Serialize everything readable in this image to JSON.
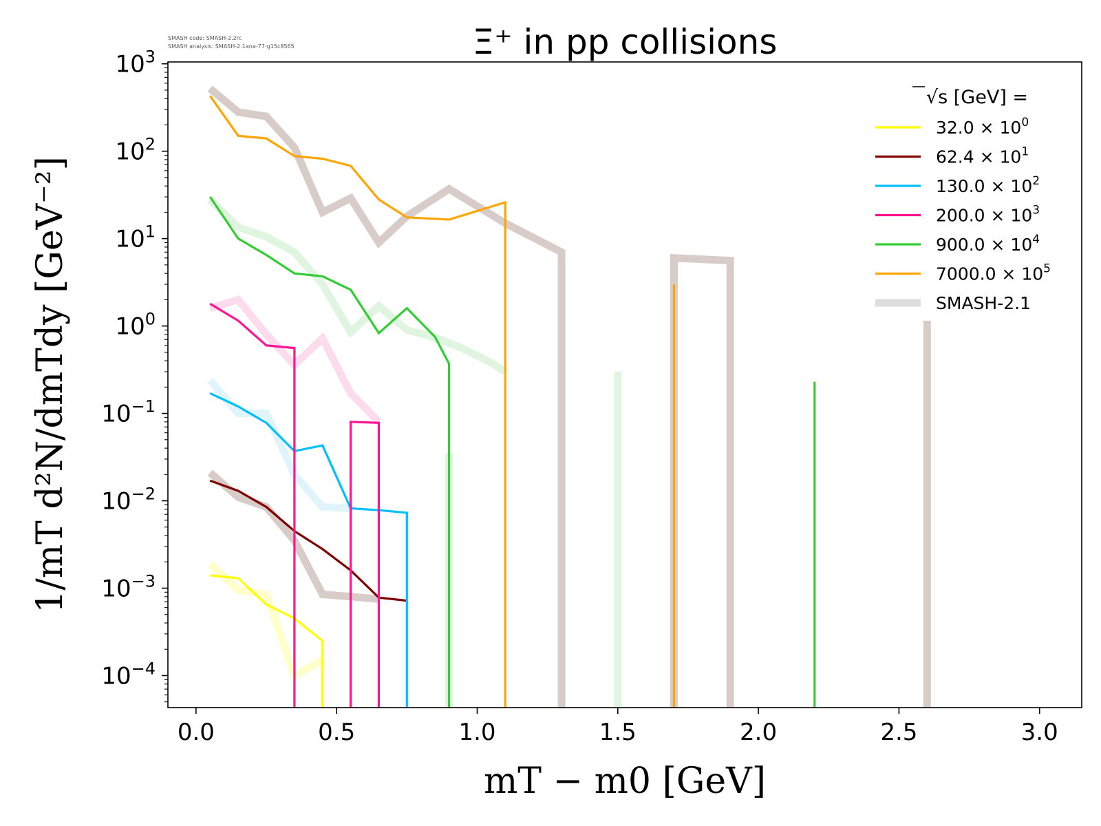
{
  "chart_data": {
    "type": "line",
    "title": "Ξ⁺ in pp collisions",
    "watermark": [
      "SMASH code:      SMASH-2.2rc",
      "SMASH analysis: SMASH-2.1ana-77-g15c8565"
    ],
    "xlabel": "mT − m0  [GeV]",
    "ylabel": "1/mT d²N/dmTdy  [GeV⁻²]",
    "xlim": [
      -0.1,
      3.15
    ],
    "ylog": true,
    "ylim": [
      4.3e-05,
      1050
    ],
    "x_ticks": [
      "0.0",
      "0.5",
      "1.0",
      "1.5",
      "2.0",
      "2.5",
      "3.0"
    ],
    "x_tick_values": [
      0,
      0.5,
      1.0,
      1.5,
      2.0,
      2.5,
      3.0
    ],
    "y_ticks": [
      {
        "base": "10",
        "exp": "−4",
        "value": 0.0001
      },
      {
        "base": "10",
        "exp": "−3",
        "value": 0.001
      },
      {
        "base": "10",
        "exp": "−2",
        "value": 0.01
      },
      {
        "base": "10",
        "exp": "−1",
        "value": 0.1
      },
      {
        "base": "10",
        "exp": "0",
        "value": 1
      },
      {
        "base": "10",
        "exp": "1",
        "value": 10
      },
      {
        "base": "10",
        "exp": "2",
        "value": 100
      },
      {
        "base": "10",
        "exp": "3",
        "value": 1000
      }
    ],
    "legend": {
      "title": "√s  [GeV] =",
      "placement": "top-right",
      "entries": [
        {
          "label": "32.0",
          "factor": "× 10",
          "exp": "0",
          "color": "#ffff00",
          "width": "thin"
        },
        {
          "label": "62.4",
          "factor": "× 10",
          "exp": "1",
          "color": "#800000",
          "width": "thin"
        },
        {
          "label": "130.0",
          "factor": "× 10",
          "exp": "2",
          "color": "#00bfff",
          "width": "thin"
        },
        {
          "label": "200.0",
          "factor": "× 10",
          "exp": "3",
          "color": "#ff1493",
          "width": "thin"
        },
        {
          "label": "900.0",
          "factor": "× 10",
          "exp": "4",
          "color": "#32cd32",
          "width": "thin"
        },
        {
          "label": "7000.0",
          "factor": "× 10",
          "exp": "5",
          "color": "#ffa500",
          "width": "thin"
        },
        {
          "label": "SMASH-2.1",
          "factor": "",
          "exp": "",
          "color": "#dddddd",
          "width": "thick"
        }
      ]
    },
    "series": [
      {
        "name": "32.0 × 10^0",
        "role": "data",
        "color": "#ffff00",
        "x": [
          0.05,
          0.15,
          0.25,
          0.35,
          0.45,
          0.45
        ],
        "y": [
          0.0014,
          0.0013,
          0.00065,
          0.00045,
          0.00025,
          3e-05
        ]
      },
      {
        "name": "62.4 × 10^1",
        "role": "data",
        "color": "#800000",
        "x": [
          0.05,
          0.15,
          0.25,
          0.35,
          0.45,
          0.55,
          0.65,
          0.75
        ],
        "y": [
          0.017,
          0.013,
          0.0085,
          0.0045,
          0.0028,
          0.0016,
          0.00078,
          0.00072
        ]
      },
      {
        "name": "130.0 × 10^2",
        "role": "data",
        "color": "#00bfff",
        "x": [
          0.05,
          0.15,
          0.25,
          0.35,
          0.45,
          0.55,
          0.65,
          0.75,
          0.75
        ],
        "y": [
          0.17,
          0.12,
          0.078,
          0.037,
          0.043,
          0.0082,
          0.0078,
          0.0073,
          3e-05
        ]
      },
      {
        "name": "200.0 × 10^3",
        "role": "data",
        "color": "#ff1493",
        "x": [
          0.05,
          0.15,
          0.25,
          0.35,
          0.35,
          0.35,
          0.45,
          0.55,
          0.55,
          0.65,
          0.65
        ],
        "y": [
          1.8,
          1.15,
          0.6,
          0.56,
          3e-05,
          3e-05,
          3e-05,
          3e-05,
          0.08,
          0.078,
          3e-05
        ]
      },
      {
        "name": "900.0 × 10^4",
        "role": "data",
        "color": "#32cd32",
        "x": [
          0.05,
          0.15,
          0.25,
          0.35,
          0.45,
          0.55,
          0.65,
          0.75,
          0.85,
          0.9,
          0.9
        ],
        "y": [
          30,
          10,
          6.5,
          4.0,
          3.7,
          2.6,
          0.83,
          1.6,
          0.75,
          0.37,
          3e-05
        ]
      },
      {
        "name": "900.0 × 10^4 (spike)",
        "role": "data",
        "color": "#32cd32",
        "x": [
          2.2,
          2.2
        ],
        "y": [
          3e-05,
          0.23
        ]
      },
      {
        "name": "7000.0 × 10^5",
        "role": "data",
        "color": "#ffa500",
        "x": [
          0.05,
          0.15,
          0.25,
          0.35,
          0.45,
          0.55,
          0.65,
          0.75,
          0.9,
          1.1,
          1.1
        ],
        "y": [
          430,
          150,
          140,
          88,
          82,
          68,
          28,
          17.5,
          16.5,
          26,
          3e-05
        ]
      },
      {
        "name": "7000.0 × 10^5 (spike)",
        "role": "data",
        "color": "#ffa500",
        "x": [
          1.7,
          1.7
        ],
        "y": [
          3e-05,
          3.0
        ]
      },
      {
        "name": "SMASH-2.1 (62.4)",
        "role": "model",
        "color": "#d7ccc8",
        "x": [
          0.05,
          0.15,
          0.25,
          0.35,
          0.45,
          0.55,
          0.65
        ],
        "y": [
          0.021,
          0.011,
          0.0085,
          0.0035,
          0.00085,
          0.0008,
          0.00075
        ]
      },
      {
        "name": "SMASH-2.1 (32.0)",
        "role": "model",
        "color": "#ffffcc",
        "x": [
          0.05,
          0.15,
          0.25,
          0.35,
          0.45
        ],
        "y": [
          0.0019,
          0.00095,
          0.00085,
          0.0001,
          0.00015
        ]
      },
      {
        "name": "SMASH-2.1 (130.0)",
        "role": "model",
        "color": "#dff5fb",
        "x": [
          0.05,
          0.15,
          0.25,
          0.35,
          0.45,
          0.55
        ],
        "y": [
          0.24,
          0.1,
          0.1,
          0.02,
          0.0085,
          0.0082
        ]
      },
      {
        "name": "SMASH-2.1 (200.0)",
        "role": "model",
        "color": "#fcdcec",
        "x": [
          0.05,
          0.15,
          0.25,
          0.35,
          0.45,
          0.55,
          0.65
        ],
        "y": [
          1.6,
          2.0,
          0.8,
          0.36,
          0.72,
          0.17,
          0.08
        ]
      },
      {
        "name": "SMASH-2.1 (900.0)",
        "role": "model",
        "color": "#dff5df",
        "x": [
          0.05,
          0.15,
          0.25,
          0.35,
          0.45,
          0.55,
          0.65,
          0.75,
          0.85,
          0.95,
          1.05,
          1.1
        ],
        "y": [
          28,
          13.5,
          10.5,
          7.0,
          3.0,
          0.85,
          1.7,
          0.9,
          0.74,
          0.55,
          0.38,
          0.3
        ]
      },
      {
        "name": "SMASH-2.1 (900.0 spike)",
        "role": "model",
        "color": "#dff5df",
        "x": [
          1.5,
          1.5
        ],
        "y": [
          3e-05,
          0.3
        ]
      },
      {
        "name": "SMASH-2.1 (900.0 spike 2)",
        "role": "model",
        "color": "#dff5df",
        "x": [
          0.9,
          0.9
        ],
        "y": [
          3e-05,
          0.035
        ]
      },
      {
        "name": "SMASH-2.1 (7000.0)",
        "role": "model",
        "color": "#d7ccc8",
        "x": [
          0.05,
          0.15,
          0.25,
          0.35,
          0.45,
          0.55,
          0.65,
          0.75,
          0.9,
          1.1,
          1.3,
          1.3
        ],
        "y": [
          520,
          280,
          250,
          110,
          20,
          29,
          9.0,
          18,
          37,
          15,
          7.0,
          3e-05
        ]
      },
      {
        "name": "SMASH-2.1 (7000.0 block)",
        "role": "model",
        "color": "#d7ccc8",
        "x": [
          1.7,
          1.7,
          1.9,
          1.9
        ],
        "y": [
          3e-05,
          6.0,
          5.6,
          3e-05
        ]
      },
      {
        "name": "SMASH-2.1 (7000.0 spike)",
        "role": "model",
        "color": "#d7ccc8",
        "x": [
          2.6,
          2.6
        ],
        "y": [
          3e-05,
          1.15
        ]
      }
    ]
  }
}
